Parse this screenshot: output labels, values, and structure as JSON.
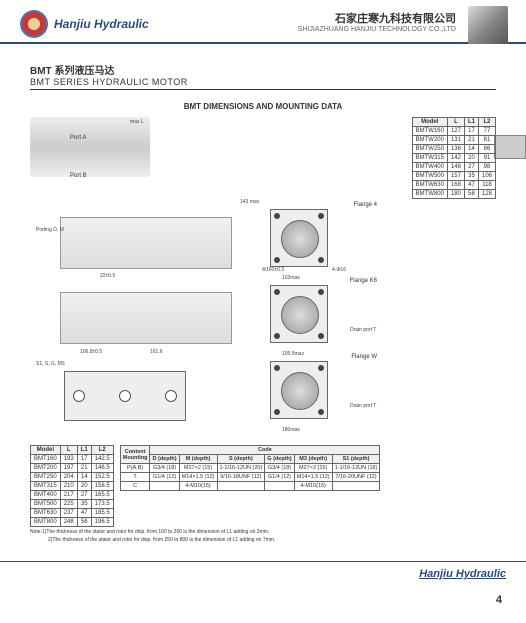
{
  "header": {
    "brand": "Hanjiu Hydraulic",
    "company_cn": "石家庄寒九科技有限公司",
    "company_en": "SHIJIAZHUANG HANJIU TECHNOLOGY CO.,LTD"
  },
  "series": {
    "title_cn": "BMT 系列液压马达",
    "title_en": "BMT SERIES HYDRAULIC MOTOR"
  },
  "dimensions_title": "BMT DIMENSIONS AND MOUNTING DATA",
  "labels": {
    "port_a": "Port A",
    "port_b": "Port B",
    "flange4": "Flange 4",
    "flangek6": "Flange K6",
    "flangew": "Flange W",
    "porting": "Porting D, M",
    "s1": "S1, S, G, M3",
    "drain": "Drain port T",
    "max_l": "max L",
    "dim_143": "143 max",
    "dim_103": "103max",
    "dim_161": "161.6",
    "dim_1068": "106.8±0.5",
    "dim_phi160": "Φ160±0.3",
    "dim_416": "4-Φ16",
    "dim_1055": "105.5max",
    "dim_180": "180max",
    "dim_2205": "22±0.5"
  },
  "table_w": {
    "headers": [
      "Model",
      "L",
      "L1",
      "L2"
    ],
    "rows": [
      [
        "BMTW160",
        "127",
        "17",
        "77"
      ],
      [
        "BMTW200",
        "131",
        "21",
        "81"
      ],
      [
        "BMTW250",
        "136",
        "14",
        "86"
      ],
      [
        "BMTW315",
        "142",
        "20",
        "91"
      ],
      [
        "BMTW400",
        "148",
        "27",
        "98"
      ],
      [
        "BMTW500",
        "157",
        "35",
        "106"
      ],
      [
        "BMTW630",
        "168",
        "47",
        "118"
      ],
      [
        "BMTW800",
        "180",
        "58",
        "128"
      ]
    ]
  },
  "table_main": {
    "headers": [
      "Model",
      "L",
      "L1",
      "L2"
    ],
    "rows": [
      [
        "BMT160",
        "193",
        "17",
        "142.5"
      ],
      [
        "BMT200",
        "197",
        "21",
        "146.5"
      ],
      [
        "BMT250",
        "204",
        "14",
        "152.5"
      ],
      [
        "BMT315",
        "210",
        "20",
        "158.5"
      ],
      [
        "BMT400",
        "217",
        "27",
        "165.5"
      ],
      [
        "BMT500",
        "225",
        "35",
        "173.5"
      ],
      [
        "BMT630",
        "237",
        "47",
        "185.5"
      ],
      [
        "BMT800",
        "248",
        "58",
        "196.5"
      ]
    ]
  },
  "code_table": {
    "title": "Code",
    "headers": [
      "Content",
      "D (depth)",
      "M (depth)",
      "S (depth)",
      "G (depth)",
      "M3 (depth)",
      "S1 (depth)"
    ],
    "mounting_label": "Mounting",
    "rows": [
      [
        "P(A,B)",
        "G3/4 (18)",
        "M27×2 (15)",
        "1-1/16-12UN (20)",
        "G3/4 (18)",
        "M27×2 (15)",
        "1-1/16-12UN (18)"
      ],
      [
        "T",
        "G1/4 (12)",
        "M14×1.5 (12)",
        "9/16-18UNF (12)",
        "G1/4 (12)",
        "M14×1.5 (12)",
        "7/16-20UNF (12)"
      ],
      [
        "C",
        "",
        "4-M10(15)",
        "",
        "",
        "4-M10(15)",
        ""
      ]
    ]
  },
  "notes": {
    "n1": "Note:1)The thickness of the stator and rotor for disp. from 160 to 200 is the dimension of L1 adding on 3mm.",
    "n2": "2)The thickness of the stator and rotor for disp. from 250 to 800 is the dimension of L1 adding on 7mm."
  },
  "footer": {
    "brand": "Hanjiu Hydraulic",
    "page": "4"
  },
  "colors": {
    "brand_blue": "#2a4a7a",
    "border": "#666666"
  }
}
